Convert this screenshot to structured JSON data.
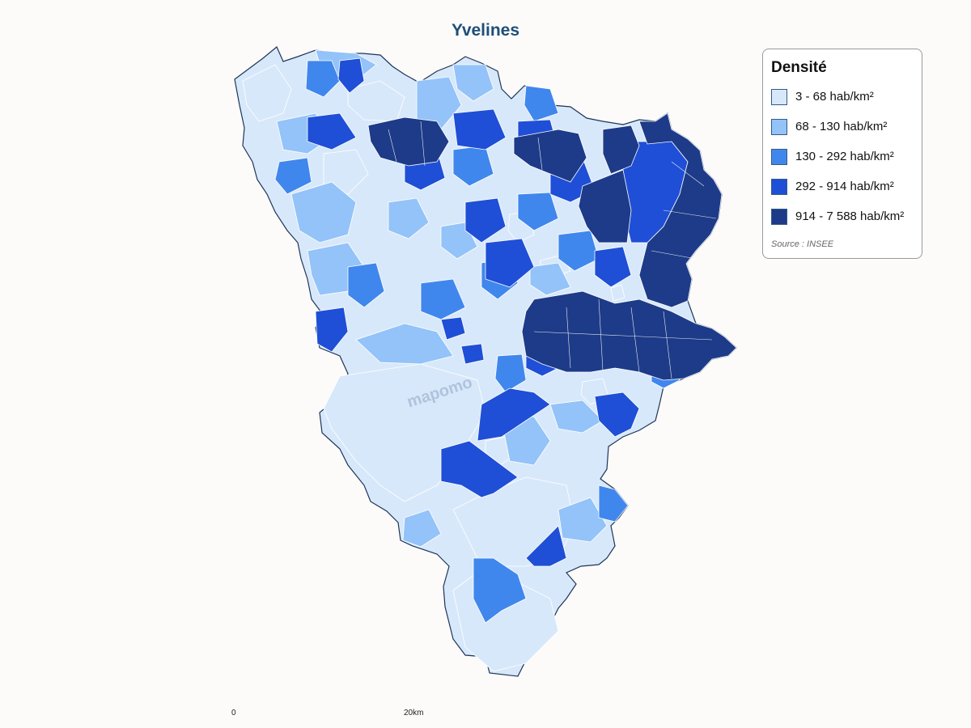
{
  "map": {
    "title": "Yvelines",
    "watermark": "mapomo",
    "legend": {
      "title": "Densité",
      "classes": [
        {
          "label": "3 - 68 hab/km²",
          "color": "#d8e8fb"
        },
        {
          "label": "68 - 130 hab/km²",
          "color": "#93c3f8"
        },
        {
          "label": "130 - 292 hab/km²",
          "color": "#4087ed"
        },
        {
          "label": "292 - 914 hab/km²",
          "color": "#1f4fd6"
        },
        {
          "label": "914 - 7 588 hab/km²",
          "color": "#1d3b88"
        }
      ],
      "source": "Source : INSEE"
    },
    "scale_bar": {
      "start": "0",
      "end": "20km"
    }
  }
}
